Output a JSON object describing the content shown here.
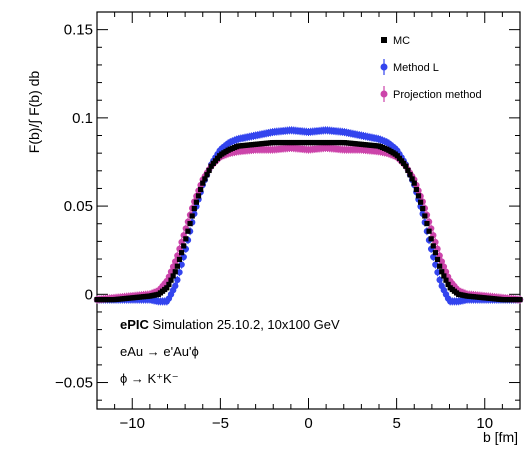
{
  "chart_data": {
    "type": "scatter",
    "title": "",
    "xlabel": "b [fm]",
    "ylabel": "F(b)/∫ F(b) db",
    "xlim": [
      -12,
      12
    ],
    "ylim": [
      -0.065,
      0.16
    ],
    "xticks": [
      -10,
      -5,
      0,
      5,
      10
    ],
    "yticks": [
      -0.05,
      0,
      0.05,
      0.1,
      0.15
    ],
    "xtick_labels": [
      "−10",
      "−5",
      "0",
      "5",
      "10"
    ],
    "ytick_labels": [
      "−0.05",
      "0",
      "0.05",
      "0.1",
      "0.15"
    ],
    "grid": false,
    "legend_position": "top-right",
    "series": [
      {
        "name": "MC",
        "color": "#000000",
        "marker": "square",
        "x": [
          -12,
          -11,
          -10,
          -9,
          -8.5,
          -8,
          -7.5,
          -7,
          -6.5,
          -6,
          -5.5,
          -5,
          -4.5,
          -4,
          -3,
          -2,
          -1,
          0,
          1,
          2,
          3,
          4,
          4.5,
          5,
          5.5,
          6,
          6.5,
          7,
          7.5,
          8,
          8.5,
          9,
          10,
          11,
          12
        ],
        "y": [
          -0.003,
          -0.003,
          -0.002,
          -0.001,
          0.0,
          0.004,
          0.014,
          0.03,
          0.048,
          0.063,
          0.073,
          0.079,
          0.082,
          0.084,
          0.085,
          0.086,
          0.086,
          0.086,
          0.086,
          0.086,
          0.085,
          0.084,
          0.082,
          0.079,
          0.073,
          0.063,
          0.048,
          0.03,
          0.014,
          0.004,
          0.0,
          -0.001,
          -0.002,
          -0.003,
          -0.003
        ]
      },
      {
        "name": "Method L",
        "color": "#3344ee",
        "marker": "circle",
        "x": [
          -12,
          -11,
          -10,
          -9,
          -8.5,
          -8,
          -7.5,
          -7,
          -6.5,
          -6,
          -5.5,
          -5,
          -4.5,
          -4,
          -3,
          -2,
          -1,
          0,
          1,
          2,
          3,
          4,
          4.5,
          5,
          5.5,
          6,
          6.5,
          7,
          7.5,
          8,
          8.5,
          9,
          10,
          11,
          12
        ],
        "y": [
          -0.003,
          -0.003,
          -0.003,
          -0.003,
          -0.004,
          -0.004,
          0.006,
          0.024,
          0.045,
          0.062,
          0.074,
          0.082,
          0.086,
          0.088,
          0.09,
          0.092,
          0.093,
          0.092,
          0.093,
          0.092,
          0.09,
          0.088,
          0.086,
          0.082,
          0.074,
          0.062,
          0.045,
          0.024,
          0.006,
          -0.004,
          -0.004,
          -0.003,
          -0.003,
          -0.003,
          -0.003
        ]
      },
      {
        "name": "Projection method",
        "color": "#cc44aa",
        "marker": "circle",
        "x": [
          -12,
          -11,
          -10,
          -9,
          -8.5,
          -8,
          -7.5,
          -7,
          -6.5,
          -6,
          -5.5,
          -5,
          -4.5,
          -4,
          -3,
          -2,
          -1,
          0,
          1,
          2,
          3,
          4,
          4.5,
          5,
          5.5,
          6,
          6.5,
          7,
          7.5,
          8,
          8.5,
          9,
          10,
          11,
          12
        ],
        "y": [
          -0.003,
          -0.002,
          -0.001,
          0.0,
          0.002,
          0.008,
          0.02,
          0.036,
          0.052,
          0.065,
          0.073,
          0.078,
          0.08,
          0.081,
          0.082,
          0.082,
          0.083,
          0.082,
          0.083,
          0.082,
          0.082,
          0.081,
          0.08,
          0.078,
          0.073,
          0.065,
          0.052,
          0.036,
          0.02,
          0.008,
          0.002,
          0.0,
          -0.001,
          -0.002,
          -0.003
        ]
      }
    ],
    "annotations": [
      {
        "bold": "ePIC",
        "text": " Simulation 25.10.2, 10x100 GeV"
      },
      {
        "bold": "",
        "text": "eAu → e'Au'ϕ"
      },
      {
        "bold": "",
        "text": "ϕ → K⁺K⁻"
      }
    ]
  }
}
